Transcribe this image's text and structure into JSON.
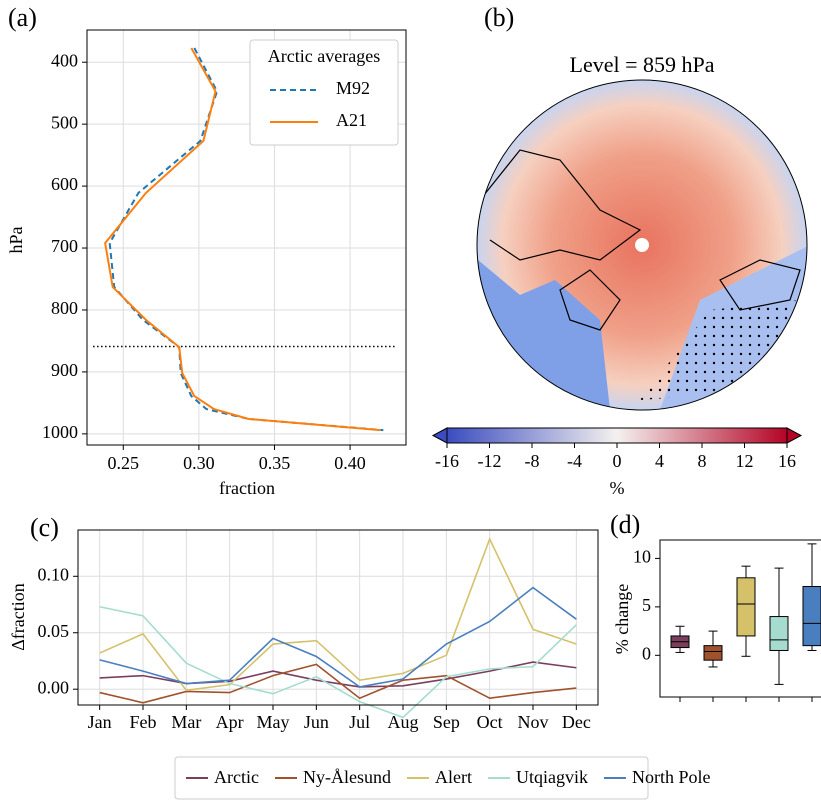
{
  "chart_data": [
    {
      "type": "line-profile",
      "panel": "(a)",
      "xlabel": "fraction",
      "ylabel": "hPa",
      "legend_title": "Arctic averages",
      "legend": "upper right",
      "grid": true,
      "levels": [
        377,
        447,
        527,
        611,
        692,
        763,
        816,
        860,
        902,
        939,
        960,
        976,
        994
      ],
      "series": [
        {
          "name": "M92",
          "color": "#1f77b4",
          "dash": true,
          "values": [
            0.297,
            0.312,
            0.301,
            0.26,
            0.241,
            0.244,
            0.263,
            0.287,
            0.288,
            0.295,
            0.305,
            0.333,
            0.422
          ]
        },
        {
          "name": "A21",
          "color": "#ff7f0e",
          "dash": false,
          "values": [
            0.295,
            0.311,
            0.303,
            0.265,
            0.238,
            0.243,
            0.265,
            0.287,
            0.289,
            0.297,
            0.31,
            0.333,
            0.42
          ]
        }
      ],
      "hline": {
        "value": 859,
        "xrange": [
          0.23,
          0.43
        ]
      },
      "xlim": [
        0.226,
        0.437
      ],
      "ylim": [
        1018,
        348
      ],
      "xticks": [
        {
          "value": 0.25,
          "label": "0.25"
        },
        {
          "value": 0.3,
          "label": "0.30"
        },
        {
          "value": 0.35,
          "label": "0.35"
        },
        {
          "value": 0.4,
          "label": "0.40"
        }
      ],
      "yticks": [
        400,
        500,
        600,
        700,
        800,
        900,
        1000
      ]
    },
    {
      "type": "map",
      "panel": "(b)",
      "title": "Level = 859 hPa",
      "colorbar_label": "%",
      "clim": [
        -16,
        16
      ],
      "colors": [
        "#3b4cc0",
        "#f4f1ef",
        "#b40426"
      ],
      "extend": "both",
      "cticks": [
        -16,
        -12,
        -8,
        -4,
        0,
        4,
        8,
        12,
        16
      ]
    },
    {
      "type": "line",
      "panel": "(c)",
      "ylabel": "Δfraction",
      "grid": true,
      "legend": "lower center",
      "categories": [
        "Jan",
        "Feb",
        "Mar",
        "Apr",
        "May",
        "Jun",
        "Jul",
        "Aug",
        "Sep",
        "Oct",
        "Nov",
        "Dec"
      ],
      "series": [
        {
          "name": "Arctic",
          "color": "#7b3f5e",
          "values": [
            0.01,
            0.012,
            0.005,
            0.007,
            0.016,
            0.008,
            0.002,
            0.003,
            0.009,
            0.016,
            0.024,
            0.019
          ]
        },
        {
          "name": "Ny-Ålesund",
          "color": "#a0522d",
          "values": [
            -0.003,
            -0.012,
            -0.002,
            -0.003,
            0.012,
            0.022,
            -0.008,
            0.008,
            0.012,
            -0.008,
            -0.003,
            0.001
          ]
        },
        {
          "name": "Alert",
          "color": "#d4c16a",
          "values": [
            0.032,
            0.049,
            -0.001,
            0.004,
            0.04,
            0.043,
            0.008,
            0.014,
            0.03,
            0.133,
            0.053,
            0.04
          ]
        },
        {
          "name": "Utqiagvik",
          "color": "#a6dccf",
          "values": [
            0.073,
            0.065,
            0.023,
            0.005,
            -0.004,
            0.011,
            -0.011,
            -0.025,
            0.011,
            0.018,
            0.02,
            0.057
          ]
        },
        {
          "name": "North Pole",
          "color": "#4a7fbf",
          "values": [
            0.026,
            0.016,
            0.005,
            0.008,
            0.045,
            0.029,
            0.002,
            0.009,
            0.04,
            0.06,
            0.09,
            0.062
          ]
        }
      ],
      "ylim": [
        -0.014,
        0.141
      ],
      "yticks": [
        {
          "value": 0,
          "label": "0.00"
        },
        {
          "value": 0.05,
          "label": "0.05"
        },
        {
          "value": 0.1,
          "label": "0.10"
        }
      ]
    },
    {
      "type": "box",
      "panel": "(d)",
      "ylabel": "% change",
      "grid": false,
      "boxes": [
        {
          "color": "#7b3f5e",
          "whislo": 0.3,
          "q1": 0.8,
          "med": 1.4,
          "q3": 2.0,
          "whishi": 3.0
        },
        {
          "color": "#a0522d",
          "whislo": -1.2,
          "q1": -0.5,
          "med": 0.4,
          "q3": 1.0,
          "whishi": 2.5
        },
        {
          "color": "#d4c16a",
          "whislo": -0.1,
          "q1": 2.0,
          "med": 5.3,
          "q3": 8.0,
          "whishi": 9.2
        },
        {
          "color": "#a6dccf",
          "whislo": -3.0,
          "q1": 0.5,
          "med": 1.6,
          "q3": 4.0,
          "whishi": 9.0
        },
        {
          "color": "#4a7fbf",
          "whislo": 0.5,
          "q1": 1.0,
          "med": 3.3,
          "q3": 7.1,
          "whishi": 11.5
        }
      ],
      "ylim": [
        -4.3,
        11.9
      ],
      "yticks": [
        0,
        5,
        10
      ]
    }
  ]
}
